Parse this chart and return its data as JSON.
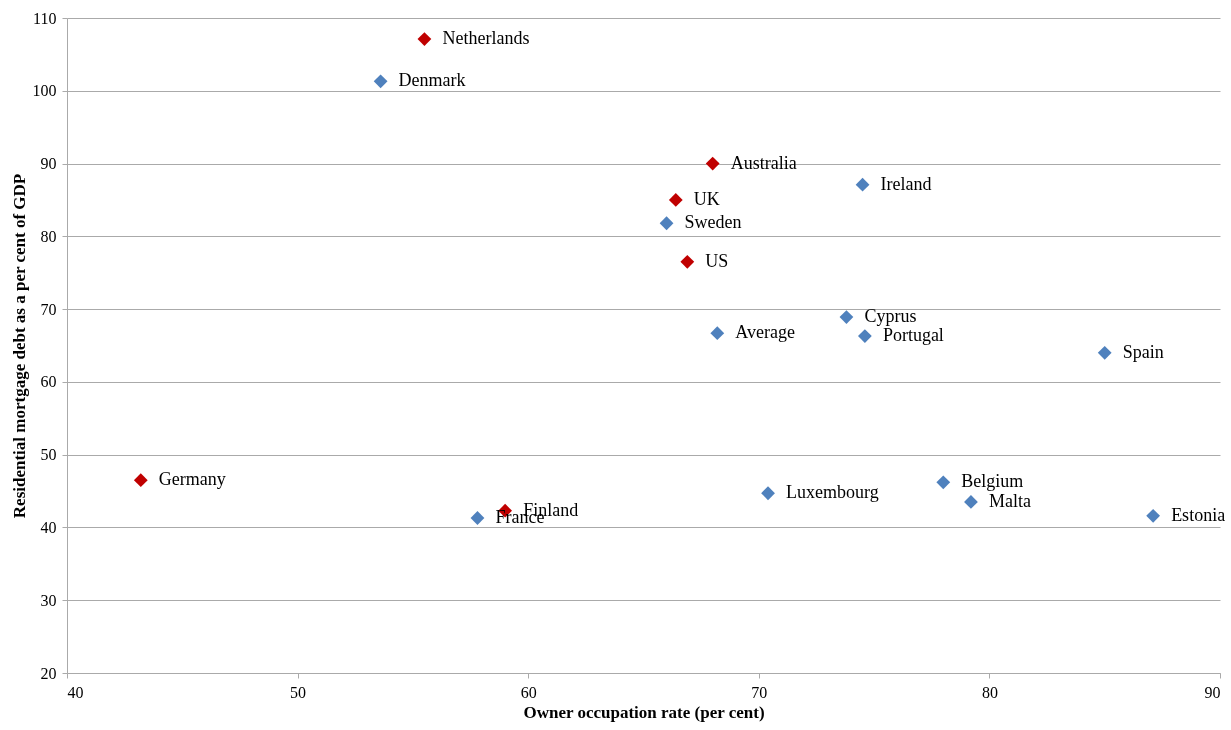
{
  "chart_data": {
    "type": "scatter",
    "xlabel": "Owner occupation rate (per cent)",
    "ylabel": "Residential mortgage debt as a per cent of GDP",
    "xlim": [
      40,
      90
    ],
    "xticks": [
      40,
      50,
      60,
      70,
      80,
      90
    ],
    "ylim": [
      20,
      110
    ],
    "yticks": [
      20,
      30,
      40,
      50,
      60,
      70,
      80,
      90,
      100,
      110
    ],
    "grid": "y",
    "marker": "diamond",
    "legend": false,
    "series": [
      {
        "color": "#c00000",
        "x": [
          55.5,
          68.0,
          66.4,
          66.9,
          43.2,
          59.0
        ],
        "values": [
          107.1,
          90.0,
          85.0,
          76.5,
          46.5,
          42.3
        ],
        "value_labels": [
          "Netherlands",
          "Australia",
          "UK",
          "US",
          "Germany",
          "Finland"
        ]
      },
      {
        "color": "#4f81bd",
        "x": [
          53.6,
          74.5,
          66.0,
          73.8,
          68.2,
          74.6,
          85.0,
          57.8,
          70.4,
          78.0,
          79.2,
          87.1
        ],
        "values": [
          101.3,
          87.1,
          81.8,
          68.9,
          66.7,
          66.3,
          64.0,
          41.3,
          44.7,
          46.2,
          43.5,
          41.6
        ],
        "value_labels": [
          "Denmark",
          "Ireland",
          "Sweden",
          "Cyprus",
          "Average",
          "Portugal",
          "Spain",
          "France",
          "Luxembourg",
          "Belgium",
          "Malta",
          "Estonia"
        ]
      }
    ]
  }
}
